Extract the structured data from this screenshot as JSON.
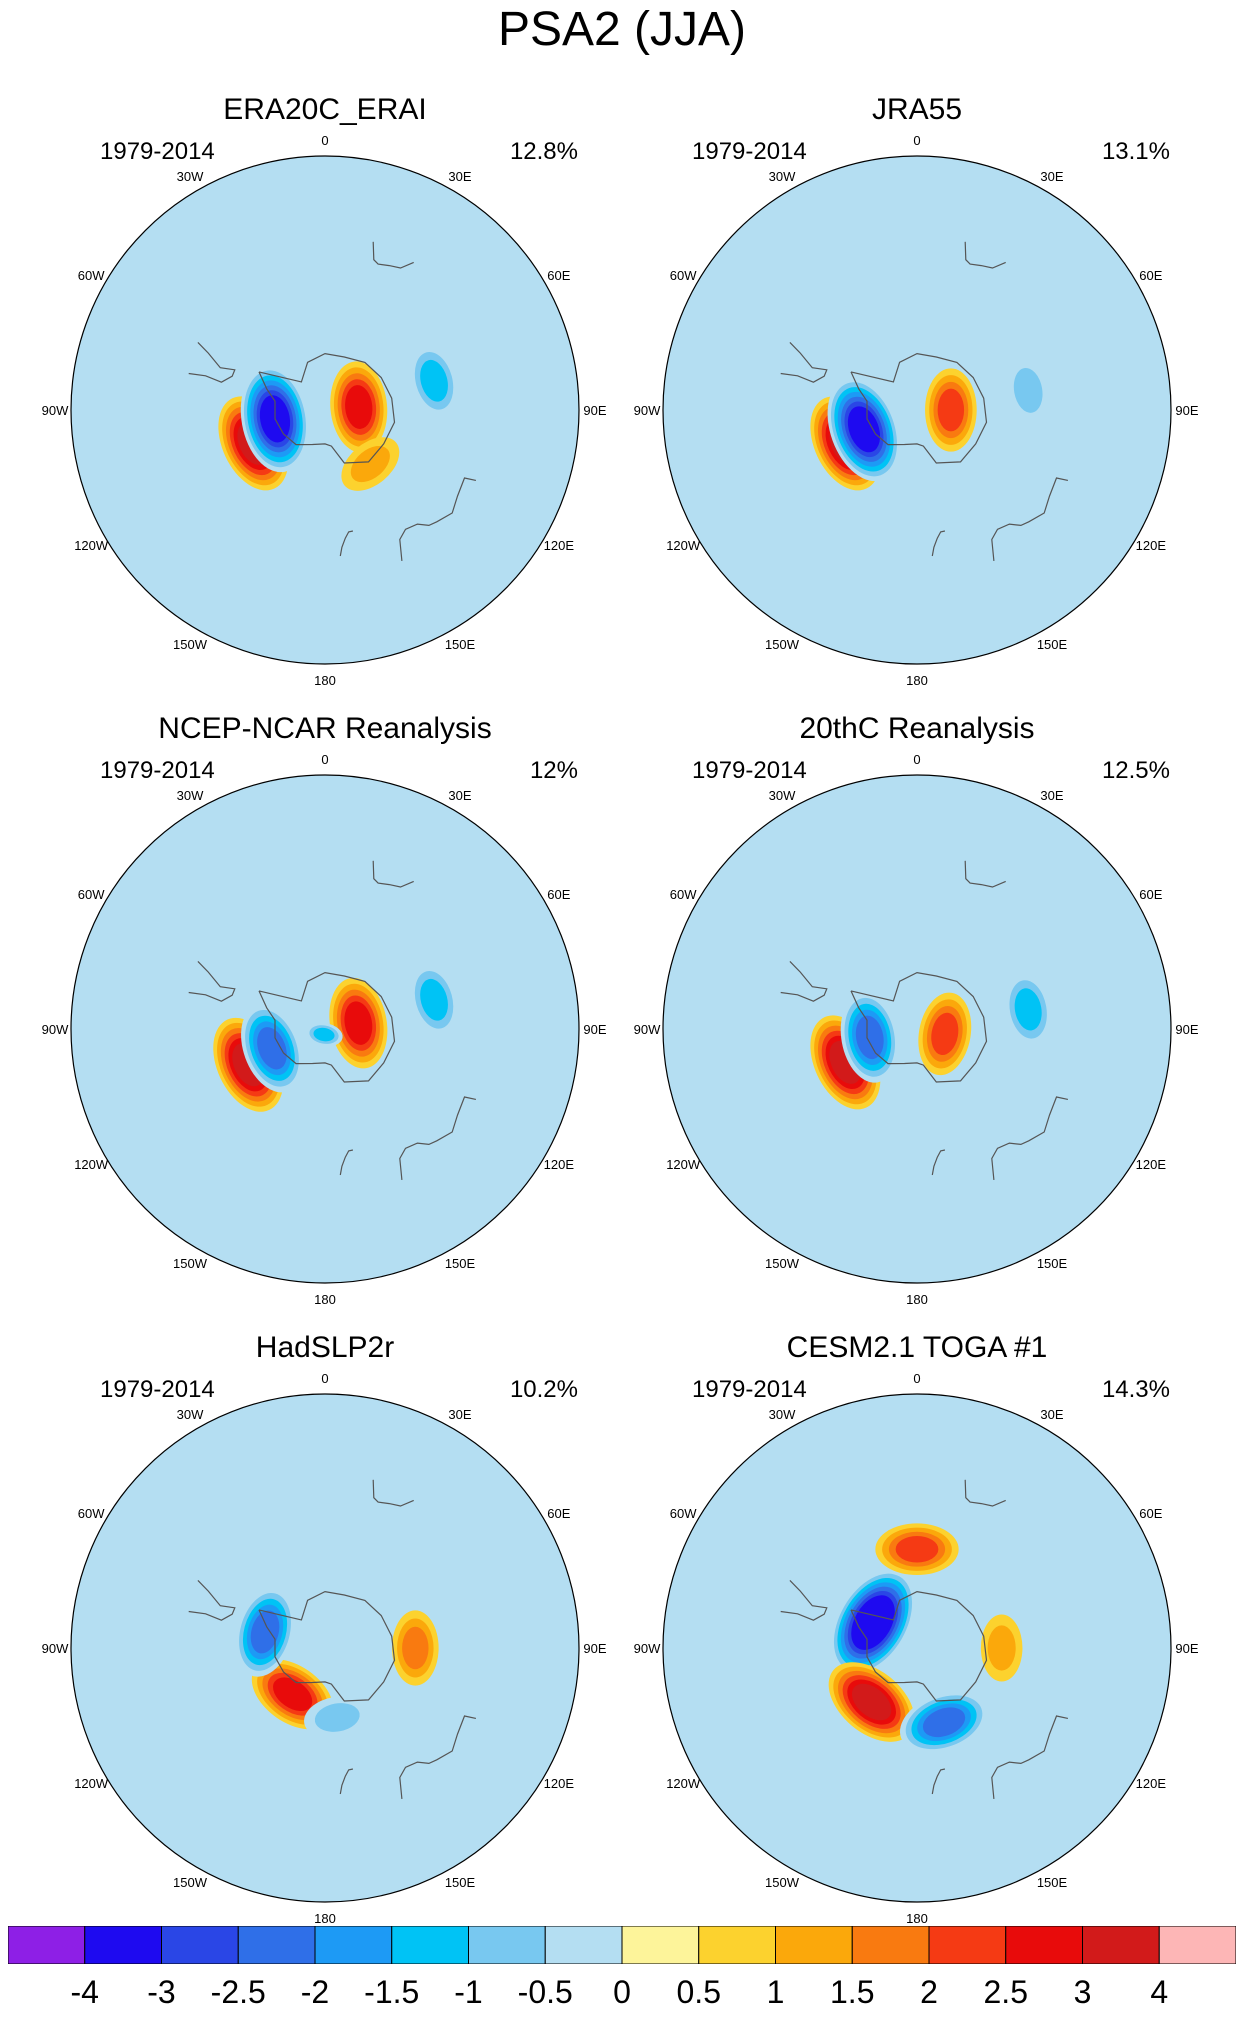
{
  "title": "PSA2 (JJA)",
  "longitude_labels": [
    "0",
    "30E",
    "60E",
    "90E",
    "120E",
    "150E",
    "180",
    "150W",
    "120W",
    "90W",
    "60W",
    "30W"
  ],
  "panels": [
    {
      "title": "ERA20C_ERAI",
      "years": "1979-2014",
      "variance": "12.8%",
      "features": [
        {
          "kind": "pos",
          "peak": 3.0,
          "lon": -115,
          "lat": -62,
          "ext": 1.0
        },
        {
          "kind": "neg",
          "peak": -3.5,
          "lon": -100,
          "lat": -72,
          "ext": 1.0
        },
        {
          "kind": "pos",
          "peak": 2.5,
          "lon": 85,
          "lat": -78,
          "ext": 1.0
        },
        {
          "kind": "neg",
          "peak": -1.5,
          "lon": 75,
          "lat": -50,
          "ext": 1.0
        },
        {
          "kind": "pos",
          "peak": 1.0,
          "lon": 140,
          "lat": -65,
          "ext": 1.0
        }
      ]
    },
    {
      "title": "JRA55",
      "years": "1979-2014",
      "variance": "13.1%",
      "features": [
        {
          "kind": "pos",
          "peak": 3.0,
          "lon": -115,
          "lat": -62,
          "ext": 1.0
        },
        {
          "kind": "neg",
          "peak": -3.5,
          "lon": -110,
          "lat": -70,
          "ext": 1.0
        },
        {
          "kind": "pos",
          "peak": 2.0,
          "lon": 90,
          "lat": -78,
          "ext": 1.0
        },
        {
          "kind": "neg",
          "peak": -1.0,
          "lon": 80,
          "lat": -50,
          "ext": 1.0
        }
      ]
    },
    {
      "title": "NCEP-NCAR Reanalysis",
      "years": "1979-2014",
      "variance": "12%",
      "features": [
        {
          "kind": "pos",
          "peak": 3.0,
          "lon": -115,
          "lat": -60,
          "ext": 1.0
        },
        {
          "kind": "neg",
          "peak": -2.5,
          "lon": -110,
          "lat": -70,
          "ext": 1.0
        },
        {
          "kind": "pos",
          "peak": 2.5,
          "lon": 80,
          "lat": -78,
          "ext": 1.0
        },
        {
          "kind": "neg",
          "peak": -1.5,
          "lon": 75,
          "lat": -50,
          "ext": 1.0
        },
        {
          "kind": "neg",
          "peak": -1.5,
          "lon": -170,
          "lat": -88,
          "ext": 0.5
        }
      ]
    },
    {
      "title": "20thC Reanalysis",
      "years": "1979-2014",
      "variance": "12.5%",
      "features": [
        {
          "kind": "pos",
          "peak": 3.0,
          "lon": -115,
          "lat": -62,
          "ext": 1.0
        },
        {
          "kind": "neg",
          "peak": -2.5,
          "lon": -100,
          "lat": -73,
          "ext": 1.0
        },
        {
          "kind": "pos",
          "peak": 2.0,
          "lon": 100,
          "lat": -80,
          "ext": 1.0
        },
        {
          "kind": "neg",
          "peak": -1.5,
          "lon": 80,
          "lat": -50,
          "ext": 1.0
        }
      ]
    },
    {
      "title": "HadSLP2r",
      "years": "1979-2014",
      "variance": "10.2%",
      "features": [
        {
          "kind": "pos",
          "peak": 2.5,
          "lon": -145,
          "lat": -70,
          "ext": 1.0
        },
        {
          "kind": "neg",
          "peak": -2.5,
          "lon": -75,
          "lat": -68,
          "ext": 1.0
        },
        {
          "kind": "pos",
          "peak": 1.5,
          "lon": 90,
          "lat": -58,
          "ext": 1.0
        },
        {
          "kind": "neg",
          "peak": -1.0,
          "lon": 170,
          "lat": -65,
          "ext": 1.0
        }
      ]
    },
    {
      "title": "CESM2.1 TOGA #1",
      "years": "1979-2014",
      "variance": "14.3%",
      "features": [
        {
          "kind": "neg",
          "peak": -4.0,
          "lon": -60,
          "lat": -72,
          "ext": 1.0
        },
        {
          "kind": "pos",
          "peak": 3.0,
          "lon": -140,
          "lat": -65,
          "ext": 1.0
        },
        {
          "kind": "neg",
          "peak": -2.5,
          "lon": 160,
          "lat": -62,
          "ext": 1.0
        },
        {
          "kind": "pos",
          "peak": 2.0,
          "lon": 0,
          "lat": -55,
          "ext": 1.0
        },
        {
          "kind": "pos",
          "peak": 1.0,
          "lon": 90,
          "lat": -60,
          "ext": 1.0
        }
      ]
    }
  ],
  "colorbar": {
    "labels": [
      "-4",
      "-3",
      "-2.5",
      "-2",
      "-1.5",
      "-1",
      "-0.5",
      "0",
      "0.5",
      "1",
      "1.5",
      "2",
      "2.5",
      "3",
      "4"
    ],
    "colors": [
      "#8e1fe6",
      "#1e0af0",
      "#2a46e6",
      "#2f6fe8",
      "#1d9af5",
      "#00c3f5",
      "#78c8f0",
      "#b4def2",
      "#fdf49a",
      "#fcd22e",
      "#fba80b",
      "#f97a10",
      "#f53a14",
      "#e80b0b",
      "#d21a1a",
      "#fdb6b6"
    ]
  },
  "colors": {
    "coastline": "#555555",
    "outline": "#000000",
    "background": "#b4def2"
  }
}
